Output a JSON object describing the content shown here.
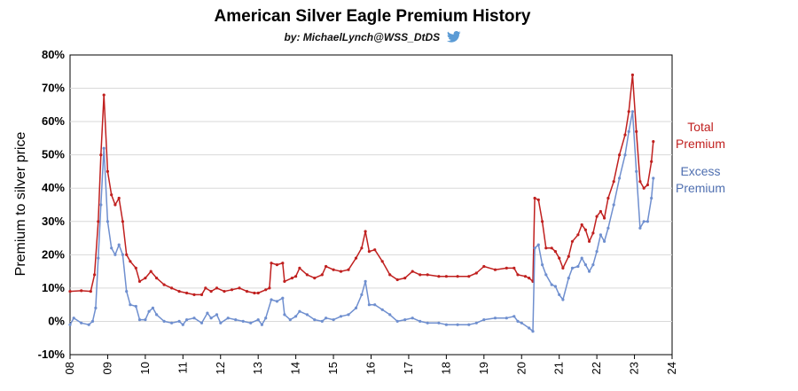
{
  "title": "American Silver Eagle Premium History",
  "subtitle": "by: MichaelLynch@WSS_DtDS",
  "icon": "twitter-bird-icon",
  "colors": {
    "total": "#c0201f",
    "excess": "#6f8fcf",
    "grid": "#d9d9d9",
    "axis": "#000000"
  },
  "legend": {
    "total_line1": "Total",
    "total_line2": "Premium",
    "excess_line1": "Excess",
    "excess_line2": "Premium"
  },
  "chart_data": {
    "type": "line",
    "title": "American Silver Eagle Premium History",
    "ylabel": "Premium to silver price",
    "xlabel": "",
    "ylim": [
      -10,
      80
    ],
    "xlim": [
      8,
      24
    ],
    "yticks": [
      "-10%",
      "0%",
      "10%",
      "20%",
      "30%",
      "40%",
      "50%",
      "60%",
      "70%",
      "80%"
    ],
    "xticks": [
      "08",
      "09",
      "10",
      "11",
      "12",
      "13",
      "14",
      "15",
      "16",
      "17",
      "18",
      "19",
      "20",
      "21",
      "22",
      "23",
      "24"
    ],
    "grid": "horizontal",
    "legend_position": "right",
    "series": [
      {
        "name": "Total Premium",
        "color": "#c0201f",
        "points": [
          [
            8.0,
            9
          ],
          [
            8.3,
            9.2
          ],
          [
            8.55,
            9
          ],
          [
            8.65,
            14
          ],
          [
            8.75,
            30
          ],
          [
            8.82,
            50
          ],
          [
            8.9,
            68
          ],
          [
            9.0,
            45
          ],
          [
            9.1,
            38
          ],
          [
            9.2,
            35
          ],
          [
            9.3,
            37
          ],
          [
            9.4,
            30
          ],
          [
            9.5,
            20
          ],
          [
            9.6,
            18
          ],
          [
            9.75,
            16
          ],
          [
            9.85,
            12
          ],
          [
            10.0,
            13
          ],
          [
            10.15,
            15
          ],
          [
            10.3,
            13
          ],
          [
            10.5,
            11
          ],
          [
            10.7,
            10
          ],
          [
            10.9,
            9
          ],
          [
            11.1,
            8.5
          ],
          [
            11.3,
            8
          ],
          [
            11.5,
            8
          ],
          [
            11.6,
            10
          ],
          [
            11.75,
            9
          ],
          [
            11.9,
            10
          ],
          [
            12.1,
            9
          ],
          [
            12.3,
            9.5
          ],
          [
            12.5,
            10
          ],
          [
            12.7,
            9
          ],
          [
            12.9,
            8.5
          ],
          [
            13.0,
            8.5
          ],
          [
            13.2,
            9.5
          ],
          [
            13.3,
            10
          ],
          [
            13.35,
            17.5
          ],
          [
            13.5,
            17
          ],
          [
            13.65,
            17.5
          ],
          [
            13.7,
            12
          ],
          [
            13.9,
            13
          ],
          [
            14.0,
            13.5
          ],
          [
            14.1,
            16
          ],
          [
            14.3,
            14
          ],
          [
            14.5,
            13
          ],
          [
            14.7,
            14
          ],
          [
            14.8,
            16.5
          ],
          [
            15.0,
            15.5
          ],
          [
            15.2,
            15
          ],
          [
            15.4,
            15.5
          ],
          [
            15.6,
            19
          ],
          [
            15.75,
            22
          ],
          [
            15.85,
            27
          ],
          [
            15.95,
            21
          ],
          [
            16.1,
            21.5
          ],
          [
            16.3,
            18
          ],
          [
            16.5,
            14
          ],
          [
            16.7,
            12.5
          ],
          [
            16.9,
            13
          ],
          [
            17.1,
            15
          ],
          [
            17.3,
            14
          ],
          [
            17.5,
            14
          ],
          [
            17.8,
            13.5
          ],
          [
            18.0,
            13.5
          ],
          [
            18.3,
            13.5
          ],
          [
            18.6,
            13.5
          ],
          [
            18.8,
            14.5
          ],
          [
            19.0,
            16.5
          ],
          [
            19.3,
            15.5
          ],
          [
            19.6,
            16
          ],
          [
            19.8,
            16
          ],
          [
            19.9,
            14
          ],
          [
            20.1,
            13.5
          ],
          [
            20.2,
            13
          ],
          [
            20.3,
            12
          ],
          [
            20.35,
            37
          ],
          [
            20.45,
            36.5
          ],
          [
            20.55,
            30
          ],
          [
            20.65,
            22
          ],
          [
            20.8,
            22
          ],
          [
            20.9,
            21
          ],
          [
            21.0,
            19
          ],
          [
            21.1,
            16
          ],
          [
            21.25,
            19.5
          ],
          [
            21.35,
            24
          ],
          [
            21.5,
            26
          ],
          [
            21.6,
            29
          ],
          [
            21.7,
            27.5
          ],
          [
            21.8,
            24
          ],
          [
            21.9,
            26.5
          ],
          [
            22.0,
            31.5
          ],
          [
            22.1,
            33
          ],
          [
            22.2,
            31
          ],
          [
            22.3,
            37
          ],
          [
            22.45,
            42
          ],
          [
            22.6,
            50
          ],
          [
            22.75,
            56
          ],
          [
            22.85,
            63
          ],
          [
            22.95,
            74
          ],
          [
            23.05,
            57
          ],
          [
            23.15,
            42
          ],
          [
            23.25,
            40
          ],
          [
            23.35,
            41
          ],
          [
            23.45,
            48
          ],
          [
            23.5,
            54
          ]
        ]
      },
      {
        "name": "Excess Premium",
        "color": "#6f8fcf",
        "points": [
          [
            8.0,
            -1
          ],
          [
            8.1,
            1
          ],
          [
            8.3,
            -0.5
          ],
          [
            8.5,
            -1
          ],
          [
            8.6,
            0
          ],
          [
            8.68,
            4
          ],
          [
            8.75,
            19
          ],
          [
            8.82,
            35
          ],
          [
            8.9,
            52
          ],
          [
            9.0,
            30
          ],
          [
            9.1,
            22
          ],
          [
            9.2,
            20
          ],
          [
            9.3,
            23
          ],
          [
            9.4,
            20
          ],
          [
            9.5,
            9
          ],
          [
            9.6,
            5
          ],
          [
            9.75,
            4.5
          ],
          [
            9.85,
            0.5
          ],
          [
            10.0,
            0.5
          ],
          [
            10.1,
            3
          ],
          [
            10.2,
            4
          ],
          [
            10.3,
            2
          ],
          [
            10.5,
            0
          ],
          [
            10.7,
            -0.5
          ],
          [
            10.9,
            0
          ],
          [
            11.0,
            -1
          ],
          [
            11.1,
            0.5
          ],
          [
            11.3,
            1
          ],
          [
            11.5,
            -0.5
          ],
          [
            11.65,
            2.5
          ],
          [
            11.75,
            1
          ],
          [
            11.9,
            2
          ],
          [
            12.0,
            -0.5
          ],
          [
            12.2,
            1
          ],
          [
            12.4,
            0.5
          ],
          [
            12.6,
            0
          ],
          [
            12.8,
            -0.5
          ],
          [
            13.0,
            0.5
          ],
          [
            13.1,
            -1
          ],
          [
            13.2,
            1
          ],
          [
            13.35,
            6.5
          ],
          [
            13.5,
            6
          ],
          [
            13.65,
            7
          ],
          [
            13.7,
            2
          ],
          [
            13.85,
            0.5
          ],
          [
            14.0,
            1.5
          ],
          [
            14.1,
            3
          ],
          [
            14.3,
            2
          ],
          [
            14.5,
            0.5
          ],
          [
            14.7,
            0
          ],
          [
            14.8,
            1
          ],
          [
            15.0,
            0.5
          ],
          [
            15.2,
            1.5
          ],
          [
            15.4,
            2
          ],
          [
            15.6,
            4
          ],
          [
            15.75,
            8
          ],
          [
            15.85,
            12
          ],
          [
            15.95,
            5
          ],
          [
            16.1,
            5
          ],
          [
            16.3,
            3.5
          ],
          [
            16.5,
            2
          ],
          [
            16.7,
            0
          ],
          [
            16.9,
            0.5
          ],
          [
            17.1,
            1
          ],
          [
            17.3,
            0
          ],
          [
            17.5,
            -0.5
          ],
          [
            17.8,
            -0.5
          ],
          [
            18.0,
            -1
          ],
          [
            18.3,
            -1
          ],
          [
            18.6,
            -1
          ],
          [
            18.8,
            -0.5
          ],
          [
            19.0,
            0.5
          ],
          [
            19.3,
            1
          ],
          [
            19.6,
            1
          ],
          [
            19.8,
            1.5
          ],
          [
            19.9,
            0
          ],
          [
            20.0,
            -0.5
          ],
          [
            20.2,
            -2
          ],
          [
            20.3,
            -3
          ],
          [
            20.35,
            22
          ],
          [
            20.45,
            23
          ],
          [
            20.55,
            17
          ],
          [
            20.65,
            14
          ],
          [
            20.8,
            11
          ],
          [
            20.9,
            10.5
          ],
          [
            21.0,
            8
          ],
          [
            21.1,
            6.5
          ],
          [
            21.25,
            13
          ],
          [
            21.35,
            16
          ],
          [
            21.5,
            16.5
          ],
          [
            21.6,
            19
          ],
          [
            21.7,
            17
          ],
          [
            21.8,
            15
          ],
          [
            21.9,
            17
          ],
          [
            22.0,
            21
          ],
          [
            22.1,
            26
          ],
          [
            22.2,
            24
          ],
          [
            22.3,
            28
          ],
          [
            22.45,
            35
          ],
          [
            22.6,
            43
          ],
          [
            22.75,
            50
          ],
          [
            22.85,
            57
          ],
          [
            22.95,
            63
          ],
          [
            23.05,
            45
          ],
          [
            23.15,
            28
          ],
          [
            23.25,
            30
          ],
          [
            23.35,
            30
          ],
          [
            23.45,
            37
          ],
          [
            23.5,
            43
          ]
        ]
      }
    ]
  }
}
